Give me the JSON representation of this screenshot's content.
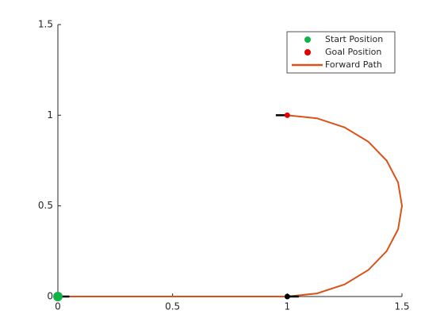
{
  "chart_data": {
    "type": "path",
    "xlim": [
      0,
      1.5
    ],
    "ylim": [
      0,
      1.5
    ],
    "xticks": [
      0,
      0.5,
      1,
      1.5
    ],
    "yticks": [
      0,
      0.5,
      1,
      1.5
    ],
    "legend": "northeast",
    "start": {
      "name": "Start Position",
      "color": "#12b24a",
      "x": 0,
      "y": 0
    },
    "goal": {
      "name": "Goal Position",
      "color": "#e50000",
      "x": 1,
      "y": 1
    },
    "series": [
      {
        "name": "Forward Path",
        "color": "#d95319",
        "x": [
          0,
          1,
          1.1294,
          1.25,
          1.3536,
          1.433,
          1.483,
          1.5,
          1.483,
          1.433,
          1.3536,
          1.25,
          1.1294,
          1
        ],
        "y": [
          0,
          0,
          0.017,
          0.067,
          0.1464,
          0.25,
          0.3706,
          0.5,
          0.6294,
          0.75,
          0.8536,
          0.933,
          0.983,
          1
        ]
      }
    ],
    "waypoint": {
      "x": 1,
      "y": 0
    },
    "headings": [
      {
        "x": [
          0,
          0.05
        ],
        "y": [
          0,
          0
        ]
      },
      {
        "x": [
          0.95,
          1
        ],
        "y": [
          1,
          1
        ]
      },
      {
        "x": [
          1,
          1.05
        ],
        "y": [
          0,
          0
        ]
      }
    ]
  }
}
